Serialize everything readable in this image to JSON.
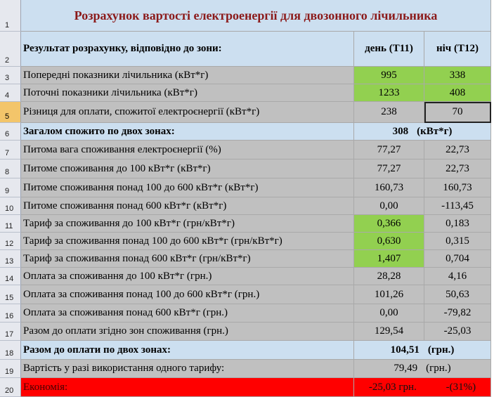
{
  "title": "Розрахунок вартості електроенергії для двозонного лічильника",
  "header": {
    "label": "Результат розрахунку, відповідно до зони:",
    "day": "день (Т11)",
    "night": "ніч (Т12)"
  },
  "rows": [
    {
      "num": "1"
    },
    {
      "num": "2"
    },
    {
      "num": "3",
      "label": "Попередні показники лічильника (кВт*г)",
      "day": "995",
      "night": "338"
    },
    {
      "num": "4",
      "label": "Поточні показники лічильника (кВт*г)",
      "day": "1233",
      "night": "408"
    },
    {
      "num": "5",
      "label": "Різниця для оплати, спожитої електроєнергії  (кВт*г)",
      "day": "238",
      "night": "70"
    },
    {
      "num": "6",
      "label": "Загалом спожито по двох зонах:",
      "value": "308",
      "unit": "(кВт*г)"
    },
    {
      "num": "7",
      "label": "Питома вага споживання електроєнергії (%)",
      "day": "77,27",
      "night": "22,73"
    },
    {
      "num": "8",
      "label": "Питоме споживання до 100 кВт*г (кВт*г)",
      "day": "77,27",
      "night": "22,73"
    },
    {
      "num": "9",
      "label": "Питоме споживання понад 100 до 600 кВт*г (кВт*г)",
      "day": "160,73",
      "night": "160,73"
    },
    {
      "num": "10",
      "label": "Питоме споживання понад 600 кВт*г (кВт*г)",
      "day": "0,00",
      "night": "-113,45"
    },
    {
      "num": "11",
      "label": "Тариф за споживання до 100 кВт*г (грн/кВт*г)",
      "day": "0,366",
      "night": "0,183"
    },
    {
      "num": "12",
      "label": "Тариф за споживання понад 100 до 600 кВт*г (грн/кВт*г)",
      "day": "0,630",
      "night": "0,315"
    },
    {
      "num": "13",
      "label": "Тариф за споживання понад 600 кВт*г (грн/кВт*г)",
      "day": "1,407",
      "night": "0,704"
    },
    {
      "num": "14",
      "label": "Оплата за споживання до 100 кВт*г (грн.)",
      "day": "28,28",
      "night": "4,16"
    },
    {
      "num": "15",
      "label": "Оплата за споживання понад 100 до 600 кВт*г (грн.)",
      "day": "101,26",
      "night": "50,63"
    },
    {
      "num": "16",
      "label": "Оплата за споживання понад 600 кВт*г (грн.)",
      "day": "0,00",
      "night": "-79,82"
    },
    {
      "num": "17",
      "label": "Разом до оплати згідно зон споживання (грн.)",
      "day": "129,54",
      "night": "-25,03"
    },
    {
      "num": "18",
      "label": "Разом до оплати по двох зонах:",
      "value": "104,51",
      "unit": "(грн.)"
    },
    {
      "num": "19",
      "label": "Вартість у разі використання одного тарифу:",
      "value": "79,49",
      "unit": "(грн.)"
    },
    {
      "num": "20",
      "label": "Економія:",
      "day": "-25,03 грн.",
      "night": "-(31%)"
    }
  ],
  "colors": {
    "input_green": "#92d050",
    "header_blue": "#ccdff0",
    "body_gray": "#c0c0c0",
    "alert_red": "#ff0000",
    "title_red": "#8b1a1a"
  }
}
